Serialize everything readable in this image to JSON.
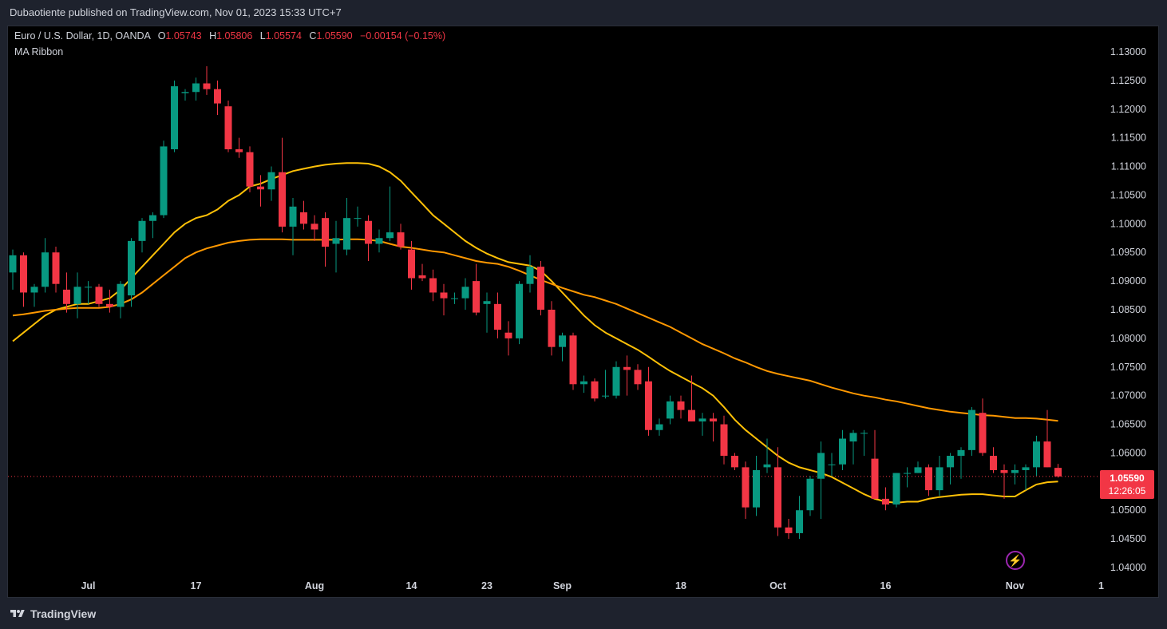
{
  "header": {
    "publisher": "Dubaotiente published on TradingView.com, Nov 01, 2023 15:33 UTC+7"
  },
  "legend": {
    "symbol": "Euro / U.S. Dollar, 1D, OANDA",
    "o_label": "O",
    "o_value": "1.05743",
    "h_label": "H",
    "h_value": "1.05806",
    "l_label": "L",
    "l_value": "1.05574",
    "c_label": "C",
    "c_value": "1.05590",
    "change": "−0.00154 (−0.15%)",
    "indicator": "MA Ribbon"
  },
  "price_tag": {
    "value": "1.05590",
    "countdown": "12:26:05"
  },
  "footer": {
    "brand": "TradingView"
  },
  "colors": {
    "up": "#089981",
    "down": "#f23645",
    "ma_fast": "#ffc107",
    "ma_slow": "#ff9800",
    "background": "#000000"
  },
  "chart_data": {
    "type": "candlestick",
    "y_ticks": [
      "1.13000",
      "1.12500",
      "1.12000",
      "1.11500",
      "1.11000",
      "1.10500",
      "1.10000",
      "1.09500",
      "1.09000",
      "1.08500",
      "1.08000",
      "1.07500",
      "1.07000",
      "1.06500",
      "1.06000",
      "1.05500",
      "1.05000",
      "1.04500",
      "1.04000"
    ],
    "ylim": [
      1.0385,
      1.1325
    ],
    "x_labels": [
      {
        "text": "Jul",
        "i": 7
      },
      {
        "text": "17",
        "i": 17
      },
      {
        "text": "Aug",
        "i": 28
      },
      {
        "text": "14",
        "i": 37
      },
      {
        "text": "23",
        "i": 44
      },
      {
        "text": "Sep",
        "i": 51
      },
      {
        "text": "18",
        "i": 62
      },
      {
        "text": "Oct",
        "i": 71
      },
      {
        "text": "16",
        "i": 81
      },
      {
        "text": "Nov",
        "i": 93
      },
      {
        "text": "1",
        "i": 101
      }
    ],
    "candles": [
      [
        1.0915,
        1.0955,
        1.0885,
        1.0945
      ],
      [
        1.0945,
        1.095,
        1.0855,
        1.088
      ],
      [
        1.088,
        1.0895,
        1.0855,
        1.089
      ],
      [
        1.089,
        1.0975,
        1.088,
        1.095
      ],
      [
        1.095,
        1.096,
        1.088,
        1.0895
      ],
      [
        1.0885,
        1.0915,
        1.0845,
        1.086
      ],
      [
        1.086,
        1.0915,
        1.0835,
        1.089
      ],
      [
        1.089,
        1.09,
        1.086,
        1.089
      ],
      [
        1.089,
        1.0895,
        1.0855,
        1.086
      ],
      [
        1.086,
        1.0885,
        1.0845,
        1.0855
      ],
      [
        1.0855,
        1.09,
        1.0835,
        1.0895
      ],
      [
        1.0875,
        1.0975,
        1.0855,
        1.097
      ],
      [
        1.097,
        1.101,
        1.095,
        1.1005
      ],
      [
        1.1005,
        1.102,
        1.0975,
        1.1015
      ],
      [
        1.1015,
        1.1145,
        1.101,
        1.1135
      ],
      [
        1.113,
        1.125,
        1.1125,
        1.124
      ],
      [
        1.1228,
        1.1235,
        1.1215,
        1.123
      ],
      [
        1.123,
        1.1255,
        1.1215,
        1.1245
      ],
      [
        1.1245,
        1.1275,
        1.1225,
        1.1235
      ],
      [
        1.1235,
        1.125,
        1.119,
        1.121
      ],
      [
        1.1205,
        1.1215,
        1.1125,
        1.113
      ],
      [
        1.113,
        1.115,
        1.1115,
        1.1125
      ],
      [
        1.1125,
        1.1135,
        1.1055,
        1.1065
      ],
      [
        1.1065,
        1.1085,
        1.103,
        1.106
      ],
      [
        1.106,
        1.11,
        1.104,
        1.109
      ],
      [
        1.109,
        1.115,
        1.0985,
        1.0995
      ],
      [
        1.0995,
        1.1045,
        1.0945,
        1.103
      ],
      [
        1.102,
        1.104,
        1.099,
        1.1
      ],
      [
        1.1,
        1.1015,
        1.097,
        1.099
      ],
      [
        1.101,
        1.102,
        1.0925,
        1.096
      ],
      [
        1.0965,
        1.1005,
        1.0915,
        1.0975
      ],
      [
        1.0955,
        1.1045,
        1.0945,
        1.101
      ],
      [
        1.101,
        1.103,
        1.0995,
        1.101
      ],
      [
        1.1005,
        1.1015,
        1.0935,
        1.0965
      ],
      [
        1.0965,
        1.099,
        1.095,
        1.0975
      ],
      [
        1.0975,
        1.1065,
        1.097,
        1.0985
      ],
      [
        1.0985,
        1.1,
        1.0955,
        1.096
      ],
      [
        1.0955,
        1.097,
        1.0885,
        1.0905
      ],
      [
        1.091,
        1.093,
        1.09,
        1.0905
      ],
      [
        1.0905,
        1.092,
        1.0865,
        1.088
      ],
      [
        1.088,
        1.0895,
        1.084,
        1.087
      ],
      [
        1.087,
        1.088,
        1.086,
        1.087
      ],
      [
        1.087,
        1.0905,
        1.085,
        1.089
      ],
      [
        1.09,
        1.093,
        1.084,
        1.0845
      ],
      [
        1.086,
        1.088,
        1.081,
        1.0865
      ],
      [
        1.086,
        1.088,
        1.08,
        1.0815
      ],
      [
        1.081,
        1.083,
        1.077,
        1.08
      ],
      [
        1.08,
        1.09,
        1.079,
        1.0895
      ],
      [
        1.0895,
        1.0945,
        1.088,
        1.0925
      ],
      [
        1.0925,
        1.0935,
        1.084,
        1.085
      ],
      [
        1.085,
        1.0865,
        1.077,
        1.0785
      ],
      [
        1.0785,
        1.081,
        1.076,
        1.0805
      ],
      [
        1.0805,
        1.081,
        1.071,
        1.072
      ],
      [
        1.072,
        1.0735,
        1.0705,
        1.0725
      ],
      [
        1.0725,
        1.073,
        1.069,
        1.0695
      ],
      [
        1.07,
        1.0745,
        1.0695,
        1.07
      ],
      [
        1.07,
        1.076,
        1.0695,
        1.075
      ],
      [
        1.075,
        1.077,
        1.07,
        1.0745
      ],
      [
        1.0745,
        1.0755,
        1.071,
        1.072
      ],
      [
        1.0725,
        1.075,
        1.063,
        1.064
      ],
      [
        1.064,
        1.066,
        1.063,
        1.065
      ],
      [
        1.066,
        1.07,
        1.065,
        1.069
      ],
      [
        1.069,
        1.07,
        1.066,
        1.0675
      ],
      [
        1.0675,
        1.0735,
        1.0655,
        1.0655
      ],
      [
        1.0655,
        1.067,
        1.063,
        1.066
      ],
      [
        1.066,
        1.067,
        1.062,
        1.0655
      ],
      [
        1.065,
        1.0665,
        1.058,
        1.0595
      ],
      [
        1.0595,
        1.06,
        1.057,
        1.0575
      ],
      [
        1.0575,
        1.0585,
        1.0485,
        1.0505
      ],
      [
        1.0505,
        1.0595,
        1.049,
        1.057
      ],
      [
        1.0575,
        1.0625,
        1.0565,
        1.058
      ],
      [
        1.0575,
        1.061,
        1.0455,
        1.047
      ],
      [
        1.047,
        1.0485,
        1.045,
        1.046
      ],
      [
        1.046,
        1.0525,
        1.045,
        1.05
      ],
      [
        1.05,
        1.056,
        1.049,
        1.0555
      ],
      [
        1.0555,
        1.062,
        1.0485,
        1.06
      ],
      [
        1.058,
        1.06,
        1.056,
        1.058
      ],
      [
        1.058,
        1.064,
        1.057,
        1.0625
      ],
      [
        1.062,
        1.064,
        1.058,
        1.0635
      ],
      [
        1.0635,
        1.064,
        1.0595,
        1.0635
      ],
      [
        1.059,
        1.064,
        1.052,
        1.052
      ],
      [
        1.052,
        1.054,
        1.05,
        1.051
      ],
      [
        1.051,
        1.0565,
        1.0505,
        1.0565
      ],
      [
        1.0565,
        1.0575,
        1.054,
        1.0565
      ],
      [
        1.0565,
        1.0585,
        1.0565,
        1.0575
      ],
      [
        1.0575,
        1.058,
        1.0525,
        1.0535
      ],
      [
        1.0535,
        1.0595,
        1.0525,
        1.0575
      ],
      [
        1.0575,
        1.06,
        1.0545,
        1.0595
      ],
      [
        1.0595,
        1.061,
        1.0555,
        1.0605
      ],
      [
        1.0605,
        1.068,
        1.0595,
        1.0675
      ],
      [
        1.067,
        1.0695,
        1.0595,
        1.06
      ],
      [
        1.0595,
        1.061,
        1.0565,
        1.057
      ],
      [
        1.057,
        1.058,
        1.052,
        1.0565
      ],
      [
        1.0565,
        1.058,
        1.0545,
        1.057
      ],
      [
        1.057,
        1.058,
        1.0535,
        1.0575
      ],
      [
        1.0575,
        1.063,
        1.056,
        1.062
      ],
      [
        1.062,
        1.0675,
        1.0575,
        1.0575
      ],
      [
        1.0574,
        1.0581,
        1.0557,
        1.0559
      ]
    ],
    "series": [
      {
        "values": [
          1.0795,
          1.081,
          1.0825,
          1.084,
          1.085,
          1.0855,
          1.086,
          1.086,
          1.0865,
          1.087,
          1.0885,
          1.0905,
          1.0925,
          1.0945,
          1.0965,
          1.0985,
          1.1,
          1.101,
          1.1015,
          1.1025,
          1.104,
          1.105,
          1.1065,
          1.107,
          1.1078,
          1.1085,
          1.1092,
          1.1096,
          1.11,
          1.1103,
          1.1105,
          1.1106,
          1.1106,
          1.1105,
          1.11,
          1.109,
          1.1075,
          1.1055,
          1.1035,
          1.1015,
          1.1,
          1.0985,
          1.097,
          1.0958,
          1.0948,
          1.094,
          1.0933,
          1.093,
          1.0927,
          1.0918,
          1.09,
          1.088,
          1.086,
          1.084,
          1.0823,
          1.081,
          1.08,
          1.079,
          1.078,
          1.0768,
          1.0755,
          1.0743,
          1.0733,
          1.0723,
          1.0713,
          1.07,
          1.068,
          1.0658,
          1.064,
          1.0625,
          1.061,
          1.0595,
          1.0583,
          1.0575,
          1.057,
          1.0565,
          1.0558,
          1.0548,
          1.0538,
          1.0528,
          1.052,
          1.0515,
          1.0513,
          1.0515,
          1.0515,
          1.052,
          1.0523,
          1.0525,
          1.0527,
          1.0528,
          1.0528,
          1.0526,
          1.0524,
          1.0524,
          1.0535,
          1.0545,
          1.0549,
          1.055
        ]
      },
      {
        "values": [
          1.084,
          1.0842,
          1.0845,
          1.0848,
          1.085,
          1.0852,
          1.0853,
          1.0853,
          1.0853,
          1.0855,
          1.086,
          1.0868,
          1.088,
          1.0895,
          1.091,
          1.0925,
          1.094,
          1.095,
          1.0957,
          1.0962,
          1.0967,
          1.097,
          1.0972,
          1.0973,
          1.0973,
          1.0973,
          1.0972,
          1.0972,
          1.0972,
          1.0972,
          1.0972,
          1.0973,
          1.0973,
          1.0972,
          1.097,
          1.0965,
          1.096,
          1.0958,
          1.0955,
          1.0952,
          1.095,
          1.0945,
          1.094,
          1.0935,
          1.0932,
          1.093,
          1.0925,
          1.0918,
          1.091,
          1.0902,
          1.0895,
          1.0888,
          1.0882,
          1.0876,
          1.0872,
          1.0866,
          1.086,
          1.0852,
          1.0844,
          1.0836,
          1.0828,
          1.082,
          1.081,
          1.08,
          1.079,
          1.0782,
          1.0774,
          1.0765,
          1.0758,
          1.075,
          1.0743,
          1.0738,
          1.0734,
          1.073,
          1.0726,
          1.072,
          1.0714,
          1.0709,
          1.0704,
          1.07,
          1.0697,
          1.0693,
          1.069,
          1.0686,
          1.0682,
          1.0678,
          1.0675,
          1.0672,
          1.067,
          1.0668,
          1.0666,
          1.0665,
          1.0663,
          1.0661,
          1.0661,
          1.066,
          1.0658,
          1.0656
        ]
      }
    ],
    "last_price": 1.0559
  }
}
